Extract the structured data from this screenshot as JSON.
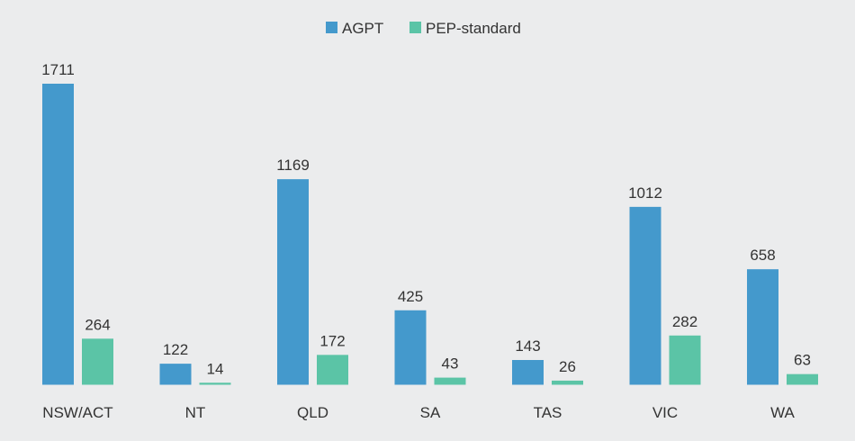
{
  "chart_data": {
    "type": "bar",
    "categories": [
      "NSW/ACT",
      "NT",
      "QLD",
      "SA",
      "TAS",
      "VIC",
      "WA"
    ],
    "series": [
      {
        "name": "AGPT",
        "color": "#4499cc",
        "values": [
          1711,
          122,
          1169,
          425,
          143,
          1012,
          658
        ]
      },
      {
        "name": "PEP-standard",
        "color": "#5bc4a6",
        "values": [
          264,
          14,
          172,
          43,
          26,
          282,
          63
        ]
      }
    ],
    "title": "",
    "xlabel": "",
    "ylabel": "",
    "ylim": [
      0,
      1711
    ],
    "grid": false,
    "legend_position": "top-center",
    "data_labels": true
  }
}
